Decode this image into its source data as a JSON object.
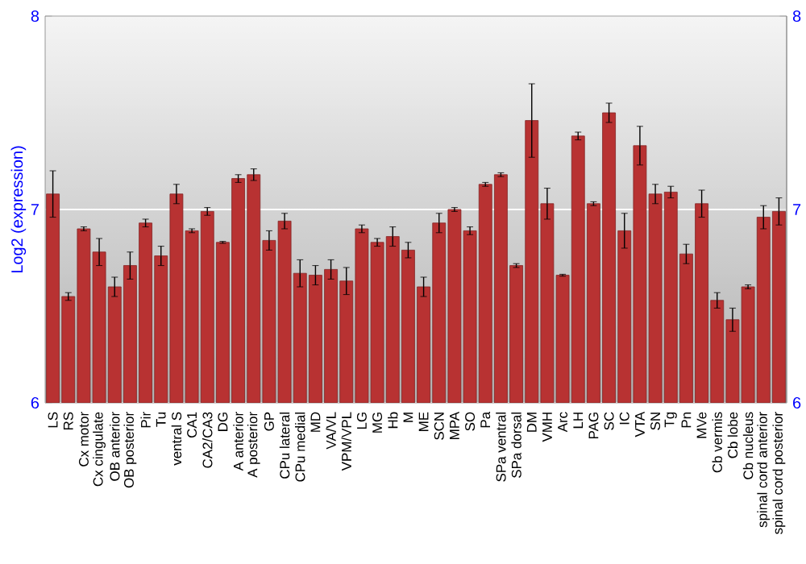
{
  "chart_data": {
    "type": "bar",
    "ylabel": "Log2 (expression)",
    "categories": [
      "LS",
      "RS",
      "Cx motor",
      "Cx cingulate",
      "OB anterior",
      "OB posterior",
      "Pir",
      "Tu",
      "ventral S",
      "CA1",
      "CA2/CA3",
      "DG",
      "A anterior",
      "A posterior",
      "GP",
      "CPu lateral",
      "CPu medial",
      "MD",
      "VA/VL",
      "VPM/VPL",
      "LG",
      "MG",
      "Hb",
      "M",
      "ME",
      "SCN",
      "MPA",
      "SO",
      "Pa",
      "SPa ventral",
      "SPa dorsal",
      "DM",
      "VMH",
      "Arc",
      "LH",
      "PAG",
      "SC",
      "IC",
      "VTA",
      "SN",
      "Tg",
      "Pn",
      "MVe",
      "Cb vermis",
      "Cb lobe",
      "Cb nucleus",
      "spinal cord anterior",
      "spinal cord posterior"
    ],
    "values": [
      7.08,
      6.55,
      6.9,
      6.78,
      6.6,
      6.71,
      6.93,
      6.76,
      7.08,
      6.89,
      6.99,
      6.83,
      7.16,
      7.18,
      6.84,
      6.94,
      6.67,
      6.66,
      6.69,
      6.63,
      6.9,
      6.83,
      6.86,
      6.79,
      6.6,
      6.93,
      7.0,
      6.89,
      7.13,
      7.18,
      6.71,
      7.46,
      7.03,
      6.66,
      7.38,
      7.03,
      7.5,
      6.89,
      7.33,
      7.08,
      7.09,
      6.77,
      7.03,
      6.53,
      6.43,
      6.6,
      6.96,
      6.99
    ],
    "errors": [
      0.12,
      0.02,
      0.01,
      0.07,
      0.05,
      0.07,
      0.02,
      0.05,
      0.05,
      0.01,
      0.02,
      0.005,
      0.02,
      0.03,
      0.05,
      0.04,
      0.07,
      0.05,
      0.05,
      0.07,
      0.02,
      0.02,
      0.05,
      0.04,
      0.05,
      0.05,
      0.01,
      0.02,
      0.01,
      0.01,
      0.01,
      0.19,
      0.08,
      0.005,
      0.02,
      0.01,
      0.05,
      0.09,
      0.1,
      0.05,
      0.03,
      0.05,
      0.07,
      0.04,
      0.06,
      0.01,
      0.06,
      0.07
    ],
    "color": "#b83232",
    "ylim": [
      6,
      8
    ],
    "yticks": [
      6,
      7,
      8
    ],
    "y2lim": [
      6,
      8
    ],
    "y2ticks": [
      6,
      7,
      8
    ],
    "grid": "y"
  }
}
